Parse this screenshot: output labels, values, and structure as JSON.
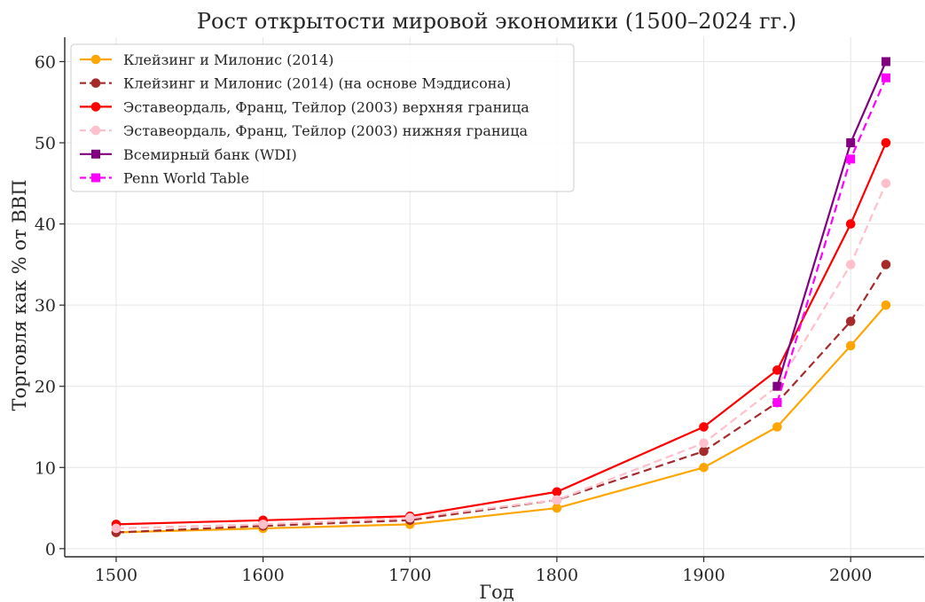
{
  "chart_data": {
    "type": "line",
    "title": "Рост открытости мировой экономики (1500–2024 гг.)",
    "xlabel": "Год",
    "ylabel": "Торговля как % от ВВП",
    "xlim": [
      1465,
      2050
    ],
    "ylim": [
      -1,
      63
    ],
    "xticks": [
      1500,
      1600,
      1700,
      1800,
      1900,
      2000
    ],
    "yticks": [
      0,
      10,
      20,
      30,
      40,
      50,
      60
    ],
    "grid": true,
    "legend_position": "top-left",
    "series": [
      {
        "name": "Клейзинг и Милонис (2014)",
        "color": "#FFA500",
        "dash": "solid",
        "marker": "circle",
        "x": [
          1500,
          1600,
          1700,
          1800,
          1900,
          1950,
          2000,
          2024
        ],
        "values": [
          2,
          2.5,
          3,
          5,
          10,
          15,
          25,
          30
        ]
      },
      {
        "name": "Клейзинг и Милонис (2014) (на основе Мэддисона)",
        "color": "#A52A2A",
        "dash": "dashed",
        "marker": "circle",
        "x": [
          1500,
          1600,
          1700,
          1800,
          1900,
          1950,
          2000,
          2024
        ],
        "values": [
          2,
          2.8,
          3.5,
          6,
          12,
          18,
          28,
          35
        ]
      },
      {
        "name": "Эставеордаль, Франц, Тейлор (2003) верхняя граница",
        "color": "#FF0000",
        "dash": "solid",
        "marker": "circle",
        "x": [
          1500,
          1600,
          1700,
          1800,
          1900,
          1950,
          2000,
          2024
        ],
        "values": [
          3,
          3.5,
          4,
          7,
          15,
          22,
          40,
          50
        ]
      },
      {
        "name": "Эставеордаль, Франц, Тейлор (2003) нижняя граница",
        "color": "#FFC0CB",
        "dash": "dashed",
        "marker": "circle",
        "x": [
          1500,
          1600,
          1700,
          1800,
          1900,
          1950,
          2000,
          2024
        ],
        "values": [
          2.5,
          3,
          3.8,
          6,
          13,
          20,
          35,
          45
        ]
      },
      {
        "name": "Всемирный банк (WDI)",
        "color": "#800080",
        "dash": "solid",
        "marker": "square",
        "x": [
          1950,
          2000,
          2024
        ],
        "values": [
          20,
          50,
          60
        ]
      },
      {
        "name": "Penn World Table",
        "color": "#FF00FF",
        "dash": "dashed",
        "marker": "square",
        "x": [
          1950,
          2000,
          2024
        ],
        "values": [
          18,
          48,
          58
        ]
      }
    ]
  }
}
